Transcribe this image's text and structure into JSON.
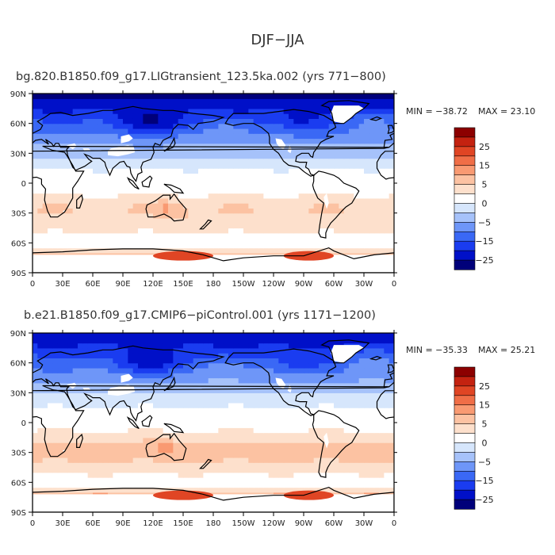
{
  "title": "DJF−JJA",
  "colors": {
    "levels": [
      "#00007a",
      "#0010c8",
      "#1a3cf0",
      "#3a68f5",
      "#6e96f8",
      "#a6c2fa",
      "#d6e6fc",
      "#ffffff",
      "#fde0cc",
      "#fcc2a2",
      "#f99a72",
      "#f06e47",
      "#e04524",
      "#c42210",
      "#8c0000"
    ],
    "land_missing": "#ffffff",
    "coast": "#000000"
  },
  "chart_data": [
    {
      "type": "heatmap",
      "panel_title": "bg.820.B1850.f09_g17.LIGtransient_123.5ka.002 (yrs 771−800)",
      "min_label": "MIN = −38.72",
      "max_label": "MAX =  23.10",
      "min": -38.72,
      "max": 23.1,
      "field_model": {
        "tropics": 2,
        "south_ocean": 9,
        "north_amp": -28,
        "antarctic_warm": 14,
        "siberia": -10
      },
      "xticks": [
        "0",
        "30E",
        "60E",
        "90E",
        "120E",
        "150E",
        "180",
        "150W",
        "120W",
        "90W",
        "60W",
        "30W",
        "0"
      ],
      "yticks": [
        "90N",
        "60N",
        "30N",
        "0",
        "30S",
        "60S",
        "90S"
      ],
      "colorbar": {
        "levels": [
          -30,
          -25,
          -20,
          -15,
          -10,
          -5,
          0,
          5,
          10,
          15,
          20,
          25,
          30
        ],
        "labels": [
          "25",
          "15",
          "5",
          "0",
          "−5",
          "−15",
          "−25"
        ]
      }
    },
    {
      "type": "heatmap",
      "panel_title": "b.e21.B1850.f09_g17.CMIP6−piControl.001 (yrs 1171−1200)",
      "min_label": "MIN = −35.33",
      "max_label": "MAX =  25.21",
      "min": -35.33,
      "max": 25.21,
      "field_model": {
        "tropics": 3,
        "south_ocean": 10,
        "north_amp": -26,
        "antarctic_warm": 16,
        "siberia": -9
      },
      "xticks": [
        "0",
        "30E",
        "60E",
        "90E",
        "120E",
        "150E",
        "180",
        "150W",
        "120W",
        "90W",
        "60W",
        "30W",
        "0"
      ],
      "yticks": [
        "90N",
        "60N",
        "30N",
        "0",
        "30S",
        "60S",
        "90S"
      ],
      "colorbar": {
        "levels": [
          -30,
          -25,
          -20,
          -15,
          -10,
          -5,
          0,
          5,
          10,
          15,
          20,
          25,
          30
        ],
        "labels": [
          "25",
          "15",
          "5",
          "0",
          "−5",
          "−15",
          "−25"
        ]
      }
    }
  ]
}
